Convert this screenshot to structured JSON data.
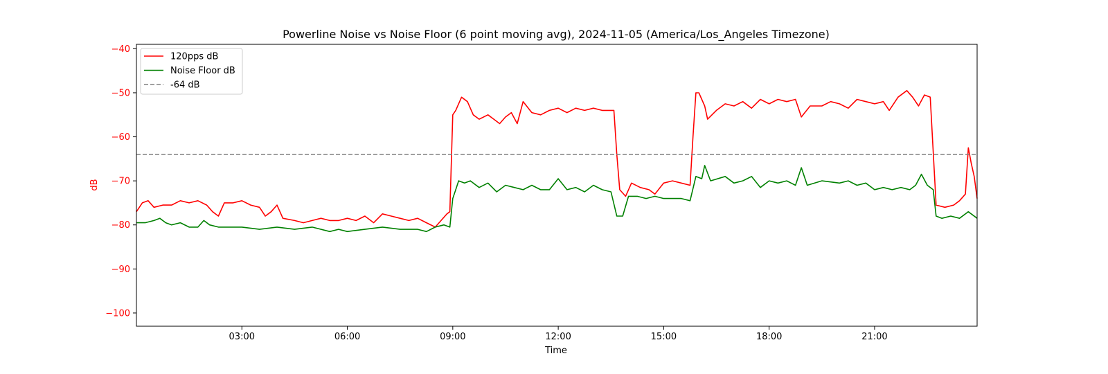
{
  "chart_data": {
    "type": "line",
    "title": "Powerline Noise vs Noise Floor (6 point moving avg), 2024-11-05 (America/Los_Angeles Timezone)",
    "xlabel": "Time",
    "ylabel": "dB",
    "xlim": [
      "00:00",
      "23:55"
    ],
    "ylim": [
      -103,
      -39
    ],
    "x_ticks": [
      "03:00",
      "06:00",
      "09:00",
      "12:00",
      "15:00",
      "18:00",
      "21:00"
    ],
    "y_ticks": [
      -40,
      -50,
      -60,
      -70,
      -80,
      -90,
      -100
    ],
    "legend_position": "upper-left",
    "grid": false,
    "colors": {
      "primary": "#ff0000",
      "noise_floor": "#008000",
      "threshold": "#808080",
      "ytick": "#ff0000"
    },
    "series": [
      {
        "name": "120pps dB",
        "color": "#ff0000",
        "style": "solid",
        "points": [
          [
            "00:00",
            -77
          ],
          [
            "00:10",
            -75
          ],
          [
            "00:20",
            -74.5
          ],
          [
            "00:30",
            -76
          ],
          [
            "00:45",
            -75.5
          ],
          [
            "01:00",
            -75.5
          ],
          [
            "01:15",
            -74.5
          ],
          [
            "01:30",
            -75
          ],
          [
            "01:45",
            -74.5
          ],
          [
            "02:00",
            -75.5
          ],
          [
            "02:10",
            -77
          ],
          [
            "02:20",
            -78
          ],
          [
            "02:30",
            -75
          ],
          [
            "02:45",
            -75
          ],
          [
            "03:00",
            -74.5
          ],
          [
            "03:15",
            -75.5
          ],
          [
            "03:30",
            -76
          ],
          [
            "03:40",
            -78
          ],
          [
            "03:50",
            -77
          ],
          [
            "04:00",
            -75.5
          ],
          [
            "04:10",
            -78.5
          ],
          [
            "04:30",
            -79
          ],
          [
            "04:45",
            -79.5
          ],
          [
            "05:00",
            -79
          ],
          [
            "05:15",
            -78.5
          ],
          [
            "05:30",
            -79
          ],
          [
            "05:45",
            -79
          ],
          [
            "06:00",
            -78.5
          ],
          [
            "06:15",
            -79
          ],
          [
            "06:30",
            -78
          ],
          [
            "06:45",
            -79.5
          ],
          [
            "07:00",
            -77.5
          ],
          [
            "07:15",
            -78
          ],
          [
            "07:30",
            -78.5
          ],
          [
            "07:45",
            -79
          ],
          [
            "08:00",
            -78.5
          ],
          [
            "08:15",
            -79.5
          ],
          [
            "08:30",
            -80.5
          ],
          [
            "08:40",
            -79
          ],
          [
            "08:50",
            -77.5
          ],
          [
            "08:55",
            -77
          ],
          [
            "09:00",
            -55
          ],
          [
            "09:05",
            -54
          ],
          [
            "09:15",
            -51
          ],
          [
            "09:25",
            -52
          ],
          [
            "09:35",
            -55
          ],
          [
            "09:45",
            -56
          ],
          [
            "10:00",
            -55
          ],
          [
            "10:10",
            -56
          ],
          [
            "10:20",
            -57
          ],
          [
            "10:30",
            -55.5
          ],
          [
            "10:40",
            -54.5
          ],
          [
            "10:50",
            -57
          ],
          [
            "11:00",
            -52
          ],
          [
            "11:15",
            -54.5
          ],
          [
            "11:30",
            -55
          ],
          [
            "11:45",
            -54
          ],
          [
            "12:00",
            -53.5
          ],
          [
            "12:15",
            -54.5
          ],
          [
            "12:30",
            -53.5
          ],
          [
            "12:45",
            -54
          ],
          [
            "13:00",
            -53.5
          ],
          [
            "13:15",
            -54
          ],
          [
            "13:30",
            -54
          ],
          [
            "13:35",
            -54
          ],
          [
            "13:40",
            -64
          ],
          [
            "13:45",
            -72
          ],
          [
            "13:55",
            -73.5
          ],
          [
            "14:05",
            -70.5
          ],
          [
            "14:20",
            -71.5
          ],
          [
            "14:35",
            -72
          ],
          [
            "14:45",
            -73
          ],
          [
            "15:00",
            -70.5
          ],
          [
            "15:15",
            -70
          ],
          [
            "15:30",
            -70.5
          ],
          [
            "15:45",
            -71
          ],
          [
            "15:50",
            -60
          ],
          [
            "15:55",
            -50
          ],
          [
            "16:00",
            -50
          ],
          [
            "16:10",
            -53
          ],
          [
            "16:15",
            -56
          ],
          [
            "16:30",
            -54
          ],
          [
            "16:45",
            -52.5
          ],
          [
            "17:00",
            -53
          ],
          [
            "17:15",
            -52
          ],
          [
            "17:30",
            -53.5
          ],
          [
            "17:45",
            -51.5
          ],
          [
            "18:00",
            -52.5
          ],
          [
            "18:15",
            -51.5
          ],
          [
            "18:30",
            -52
          ],
          [
            "18:45",
            -51.5
          ],
          [
            "18:55",
            -55.5
          ],
          [
            "19:10",
            -53
          ],
          [
            "19:30",
            -53
          ],
          [
            "19:45",
            -52
          ],
          [
            "20:00",
            -52.5
          ],
          [
            "20:15",
            -53.5
          ],
          [
            "20:30",
            -51.5
          ],
          [
            "20:45",
            -52
          ],
          [
            "21:00",
            -52.5
          ],
          [
            "21:15",
            -52
          ],
          [
            "21:25",
            -54
          ],
          [
            "21:40",
            -51
          ],
          [
            "21:55",
            -49.5
          ],
          [
            "22:05",
            -51
          ],
          [
            "22:15",
            -53
          ],
          [
            "22:25",
            -50.5
          ],
          [
            "22:35",
            -51
          ],
          [
            "22:45",
            -75.5
          ],
          [
            "23:00",
            -76
          ],
          [
            "23:15",
            -75.5
          ],
          [
            "23:25",
            -74.5
          ],
          [
            "23:35",
            -73
          ],
          [
            "23:40",
            -62.5
          ],
          [
            "23:45",
            -66
          ],
          [
            "23:50",
            -69
          ],
          [
            "23:55",
            -74
          ]
        ]
      },
      {
        "name": "Noise Floor dB",
        "color": "#008000",
        "style": "solid",
        "points": [
          [
            "00:00",
            -79.5
          ],
          [
            "00:15",
            -79.5
          ],
          [
            "00:30",
            -79
          ],
          [
            "00:40",
            -78.5
          ],
          [
            "00:50",
            -79.5
          ],
          [
            "01:00",
            -80
          ],
          [
            "01:15",
            -79.5
          ],
          [
            "01:30",
            -80.5
          ],
          [
            "01:45",
            -80.5
          ],
          [
            "01:55",
            -79
          ],
          [
            "02:05",
            -80
          ],
          [
            "02:20",
            -80.5
          ],
          [
            "02:45",
            -80.5
          ],
          [
            "03:00",
            -80.5
          ],
          [
            "03:30",
            -81
          ],
          [
            "04:00",
            -80.5
          ],
          [
            "04:30",
            -81
          ],
          [
            "05:00",
            -80.5
          ],
          [
            "05:30",
            -81.5
          ],
          [
            "05:45",
            -81
          ],
          [
            "06:00",
            -81.5
          ],
          [
            "06:30",
            -81
          ],
          [
            "07:00",
            -80.5
          ],
          [
            "07:30",
            -81
          ],
          [
            "08:00",
            -81
          ],
          [
            "08:15",
            -81.5
          ],
          [
            "08:30",
            -80.5
          ],
          [
            "08:45",
            -80
          ],
          [
            "08:55",
            -80.5
          ],
          [
            "09:00",
            -74
          ],
          [
            "09:05",
            -72
          ],
          [
            "09:10",
            -70
          ],
          [
            "09:20",
            -70.5
          ],
          [
            "09:30",
            -70
          ],
          [
            "09:45",
            -71.5
          ],
          [
            "10:00",
            -70.5
          ],
          [
            "10:15",
            -72.5
          ],
          [
            "10:30",
            -71
          ],
          [
            "10:45",
            -71.5
          ],
          [
            "11:00",
            -72
          ],
          [
            "11:15",
            -71
          ],
          [
            "11:30",
            -72
          ],
          [
            "11:45",
            -72
          ],
          [
            "12:00",
            -69.5
          ],
          [
            "12:15",
            -72
          ],
          [
            "12:30",
            -71.5
          ],
          [
            "12:45",
            -72.5
          ],
          [
            "13:00",
            -71
          ],
          [
            "13:15",
            -72
          ],
          [
            "13:30",
            -72.5
          ],
          [
            "13:40",
            -78
          ],
          [
            "13:50",
            -78
          ],
          [
            "14:00",
            -73.5
          ],
          [
            "14:15",
            -73.5
          ],
          [
            "14:30",
            -74
          ],
          [
            "14:45",
            -73.5
          ],
          [
            "15:00",
            -74
          ],
          [
            "15:30",
            -74
          ],
          [
            "15:45",
            -74.5
          ],
          [
            "15:55",
            -69
          ],
          [
            "16:05",
            -69.5
          ],
          [
            "16:10",
            -66.5
          ],
          [
            "16:20",
            -70
          ],
          [
            "16:45",
            -69
          ],
          [
            "17:00",
            -70.5
          ],
          [
            "17:15",
            -70
          ],
          [
            "17:30",
            -69
          ],
          [
            "17:45",
            -71.5
          ],
          [
            "18:00",
            -70
          ],
          [
            "18:15",
            -70.5
          ],
          [
            "18:30",
            -70
          ],
          [
            "18:45",
            -71
          ],
          [
            "18:55",
            -67
          ],
          [
            "19:05",
            -71
          ],
          [
            "19:30",
            -70
          ],
          [
            "20:00",
            -70.5
          ],
          [
            "20:15",
            -70
          ],
          [
            "20:30",
            -71
          ],
          [
            "20:45",
            -70.5
          ],
          [
            "21:00",
            -72
          ],
          [
            "21:15",
            -71.5
          ],
          [
            "21:30",
            -72
          ],
          [
            "21:45",
            -71.5
          ],
          [
            "22:00",
            -72
          ],
          [
            "22:10",
            -71
          ],
          [
            "22:20",
            -68.5
          ],
          [
            "22:30",
            -71
          ],
          [
            "22:40",
            -72
          ],
          [
            "22:45",
            -78
          ],
          [
            "22:55",
            -78.5
          ],
          [
            "23:10",
            -78
          ],
          [
            "23:25",
            -78.5
          ],
          [
            "23:40",
            -77
          ],
          [
            "23:55",
            -78.5
          ]
        ]
      },
      {
        "name": "-64 dB",
        "color": "#808080",
        "style": "dashed",
        "points": [
          [
            "00:00",
            -64
          ],
          [
            "23:55",
            -64
          ]
        ]
      }
    ]
  }
}
